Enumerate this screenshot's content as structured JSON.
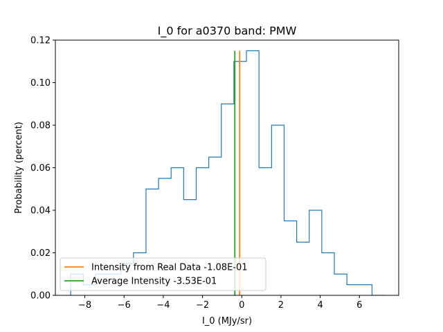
{
  "chart_data": {
    "type": "step-histogram",
    "title": "I_0 for a0370 band: PMW",
    "xlabel": "I_0 (MJy/sr)",
    "ylabel": "Probability (percent)",
    "xlim": [
      -9.5,
      8.0
    ],
    "ylim": [
      0,
      0.12
    ],
    "xticks": [
      -8,
      -6,
      -4,
      -2,
      0,
      2,
      4,
      6
    ],
    "xtick_labels": [
      "−8",
      "−6",
      "−4",
      "−2",
      "0",
      "2",
      "4",
      "6"
    ],
    "yticks": [
      0,
      0.02,
      0.04,
      0.06,
      0.08,
      0.1,
      0.12
    ],
    "ytick_labels": [
      "0.00",
      "0.02",
      "0.04",
      "0.06",
      "0.08",
      "0.10",
      "0.12"
    ],
    "grid": false,
    "histogram": {
      "color": "#1f77b4",
      "bin_edges": [
        -8.72,
        -8.08,
        -7.44,
        -6.8,
        -6.16,
        -5.52,
        -4.88,
        -4.24,
        -3.6,
        -2.96,
        -2.32,
        -1.68,
        -1.04,
        -0.4,
        0.24,
        0.88,
        1.52,
        2.16,
        2.8,
        3.44,
        4.08,
        4.72,
        5.36,
        6.0,
        6.64,
        7.28
      ],
      "values": [
        0.01,
        0.005,
        0.01,
        0.01,
        0.015,
        0.02,
        0.05,
        0.055,
        0.06,
        0.045,
        0.06,
        0.065,
        0.09,
        0.11,
        0.115,
        0.06,
        0.08,
        0.035,
        0.025,
        0.04,
        0.02,
        0.01,
        0.005,
        0.005,
        0.0
      ]
    },
    "vlines": [
      {
        "name": "Intensity from Real Data -1.08E-01",
        "x": -0.108,
        "y_max": 0.115,
        "color": "#ff7f0e"
      },
      {
        "name": "Average Intensity -3.53E-01",
        "x": -0.353,
        "y_max": 0.115,
        "color": "#2ca02c"
      }
    ],
    "legend": {
      "placement": "lower-left",
      "entries": [
        "Intensity from Real Data -1.08E-01",
        "Average Intensity -3.53E-01"
      ]
    }
  }
}
